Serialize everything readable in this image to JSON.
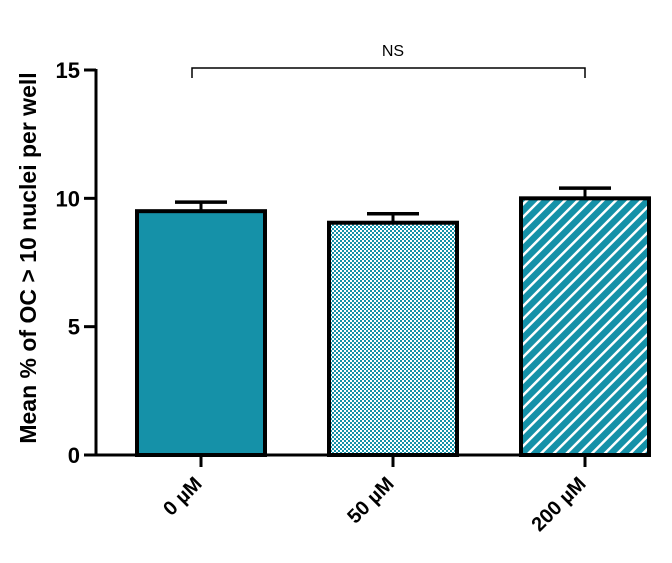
{
  "chart_data": {
    "type": "bar",
    "categories": [
      "0 µM",
      "50 µM",
      "200 µM"
    ],
    "values": [
      9.5,
      9.05,
      10.0
    ],
    "errors": [
      0.35,
      0.35,
      0.4
    ],
    "fills": [
      {
        "pattern": "solid",
        "color": "#1591a8"
      },
      {
        "pattern": "dots",
        "color": "#1591a8"
      },
      {
        "pattern": "diagonal-stripes",
        "color": "#1591a8"
      }
    ],
    "ylabel": "Mean % of OC > 10 nuclei per well",
    "xlabel": "",
    "ylim": [
      0,
      15
    ],
    "yticks": [
      0,
      5,
      10,
      15
    ],
    "annotation": {
      "text": "NS",
      "from_category": 0,
      "to_category": 2,
      "y": 15
    }
  }
}
